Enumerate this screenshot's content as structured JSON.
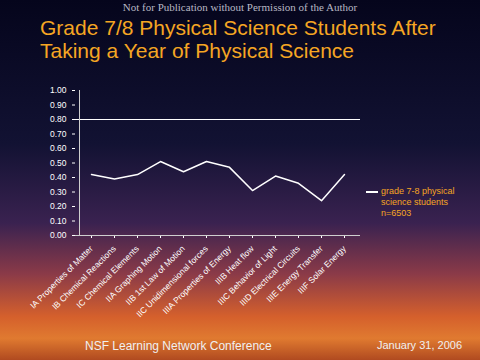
{
  "chart_data": {
    "type": "line",
    "header": "Not for Publication without Permission of the Author",
    "title": "Grade 7/8 Physical Science Students After Taking a Year of Physical Science",
    "categories": [
      "IA Properties of Matter",
      "IB Chemical Reactions",
      "IC Chemical Elements",
      "IIA Graphing Motion",
      "IIB 1st Law of Motion",
      "IIC Unidimensional forces",
      "IIIA Properties of Energy",
      "IIIB Heat flow",
      "IIIC Behavior of Light",
      "IIID Electrical Circuits",
      "IIIE Energy Transfer",
      "IIIF Solar Energy"
    ],
    "series": [
      {
        "name": "grade 7-8 physical science students n=6503",
        "color": "#ffffff",
        "values": [
          0.42,
          0.39,
          0.42,
          0.51,
          0.44,
          0.51,
          0.47,
          0.31,
          0.41,
          0.36,
          0.24,
          0.42
        ]
      }
    ],
    "reference_line": 0.8,
    "ylim": [
      0,
      1
    ],
    "yticks": [
      {
        "value": 0,
        "label": "0.00"
      },
      {
        "value": 0.1,
        "label": "0.10"
      },
      {
        "value": 0.2,
        "label": "0.20"
      },
      {
        "value": 0.3,
        "label": "0.30"
      },
      {
        "value": 0.4,
        "label": "0.40"
      },
      {
        "value": 0.5,
        "label": "0.50"
      },
      {
        "value": 0.6,
        "label": "0.60"
      },
      {
        "value": 0.7,
        "label": "0.70"
      },
      {
        "value": 0.8,
        "label": "0.80"
      },
      {
        "value": 0.9,
        "label": "0.90"
      },
      {
        "value": 1,
        "label": "1.00"
      }
    ],
    "legend": "right",
    "footer": [
      "NSF Learning Network Conference",
      "January 31, 2006"
    ]
  }
}
